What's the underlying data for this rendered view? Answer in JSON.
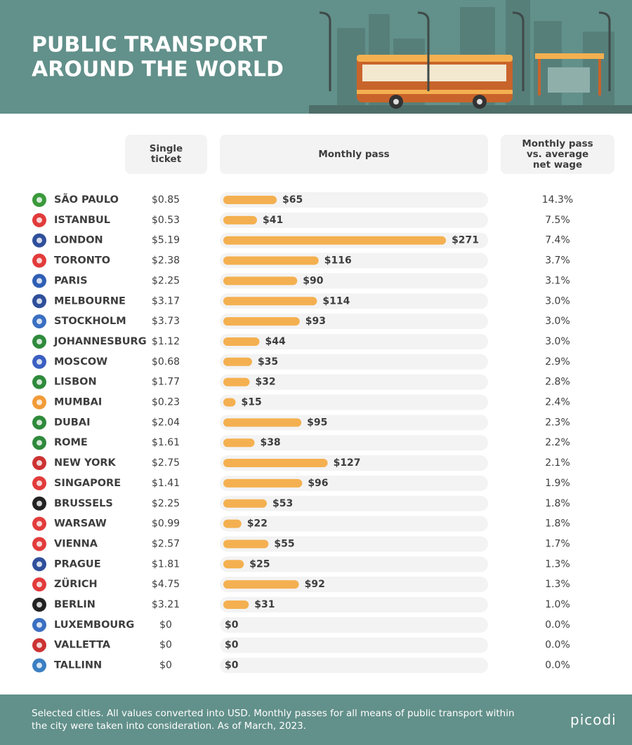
{
  "header": {
    "title_lines": [
      "PUBLIC TRANSPORT",
      "AROUND THE WORLD"
    ]
  },
  "columns": [
    "Single ticket",
    "Monthly pass",
    "Monthly pass vs. average net wage"
  ],
  "rows": [
    {
      "city": "SÃO PAULO",
      "single_ticket": "$0.85",
      "monthly_pass": 65,
      "monthly_pass_label": "$65",
      "wage_ratio": "14.3%"
    },
    {
      "city": "ISTANBUL",
      "single_ticket": "$0.53",
      "monthly_pass": 41,
      "monthly_pass_label": "$41",
      "wage_ratio": "7.5%"
    },
    {
      "city": "LONDON",
      "single_ticket": "$5.19",
      "monthly_pass": 271,
      "monthly_pass_label": "$271",
      "wage_ratio": "7.4%"
    },
    {
      "city": "TORONTO",
      "single_ticket": "$2.38",
      "monthly_pass": 116,
      "monthly_pass_label": "$116",
      "wage_ratio": "3.7%"
    },
    {
      "city": "PARIS",
      "single_ticket": "$2.25",
      "monthly_pass": 90,
      "monthly_pass_label": "$90",
      "wage_ratio": "3.1%"
    },
    {
      "city": "MELBOURNE",
      "single_ticket": "$3.17",
      "monthly_pass": 114,
      "monthly_pass_label": "$114",
      "wage_ratio": "3.0%"
    },
    {
      "city": "STOCKHOLM",
      "single_ticket": "$3.73",
      "monthly_pass": 93,
      "monthly_pass_label": "$93",
      "wage_ratio": "3.0%"
    },
    {
      "city": "JOHANNESBURG",
      "single_ticket": "$1.12",
      "monthly_pass": 44,
      "monthly_pass_label": "$44",
      "wage_ratio": "3.0%"
    },
    {
      "city": "MOSCOW",
      "single_ticket": "$0.68",
      "monthly_pass": 35,
      "monthly_pass_label": "$35",
      "wage_ratio": "2.9%"
    },
    {
      "city": "LISBON",
      "single_ticket": "$1.77",
      "monthly_pass": 32,
      "monthly_pass_label": "$32",
      "wage_ratio": "2.8%"
    },
    {
      "city": "MUMBAI",
      "single_ticket": "$0.23",
      "monthly_pass": 15,
      "monthly_pass_label": "$15",
      "wage_ratio": "2.4%"
    },
    {
      "city": "DUBAI",
      "single_ticket": "$2.04",
      "monthly_pass": 95,
      "monthly_pass_label": "$95",
      "wage_ratio": "2.3%"
    },
    {
      "city": "ROME",
      "single_ticket": "$1.61",
      "monthly_pass": 38,
      "monthly_pass_label": "$38",
      "wage_ratio": "2.2%"
    },
    {
      "city": "NEW YORK",
      "single_ticket": "$2.75",
      "monthly_pass": 127,
      "monthly_pass_label": "$127",
      "wage_ratio": "2.1%"
    },
    {
      "city": "SINGAPORE",
      "single_ticket": "$1.41",
      "monthly_pass": 96,
      "monthly_pass_label": "$96",
      "wage_ratio": "1.9%"
    },
    {
      "city": "BRUSSELS",
      "single_ticket": "$2.25",
      "monthly_pass": 53,
      "monthly_pass_label": "$53",
      "wage_ratio": "1.8%"
    },
    {
      "city": "WARSAW",
      "single_ticket": "$0.99",
      "monthly_pass": 22,
      "monthly_pass_label": "$22",
      "wage_ratio": "1.8%"
    },
    {
      "city": "VIENNA",
      "single_ticket": "$2.57",
      "monthly_pass": 55,
      "monthly_pass_label": "$55",
      "wage_ratio": "1.7%"
    },
    {
      "city": "PRAGUE",
      "single_ticket": "$1.81",
      "monthly_pass": 25,
      "monthly_pass_label": "$25",
      "wage_ratio": "1.3%"
    },
    {
      "city": "ZÜRICH",
      "single_ticket": "$4.75",
      "monthly_pass": 92,
      "monthly_pass_label": "$92",
      "wage_ratio": "1.3%"
    },
    {
      "city": "BERLIN",
      "single_ticket": "$3.21",
      "monthly_pass": 31,
      "monthly_pass_label": "$31",
      "wage_ratio": "1.0%"
    },
    {
      "city": "LUXEMBOURG",
      "single_ticket": "$0",
      "monthly_pass": 0,
      "monthly_pass_label": "$0",
      "wage_ratio": "0.0%"
    },
    {
      "city": "VALLETTA",
      "single_ticket": "$0",
      "monthly_pass": 0,
      "monthly_pass_label": "$0",
      "wage_ratio": "0.0%"
    },
    {
      "city": "TALLINN",
      "single_ticket": "$0",
      "monthly_pass": 0,
      "monthly_pass_label": "$0",
      "wage_ratio": "0.0%"
    }
  ],
  "footer": {
    "note": "Selected cities. All values converted into USD. Monthly passes for all means of public transport within the city were taken into consideration. As of March, 2023.",
    "brand": "picodi"
  }
}
